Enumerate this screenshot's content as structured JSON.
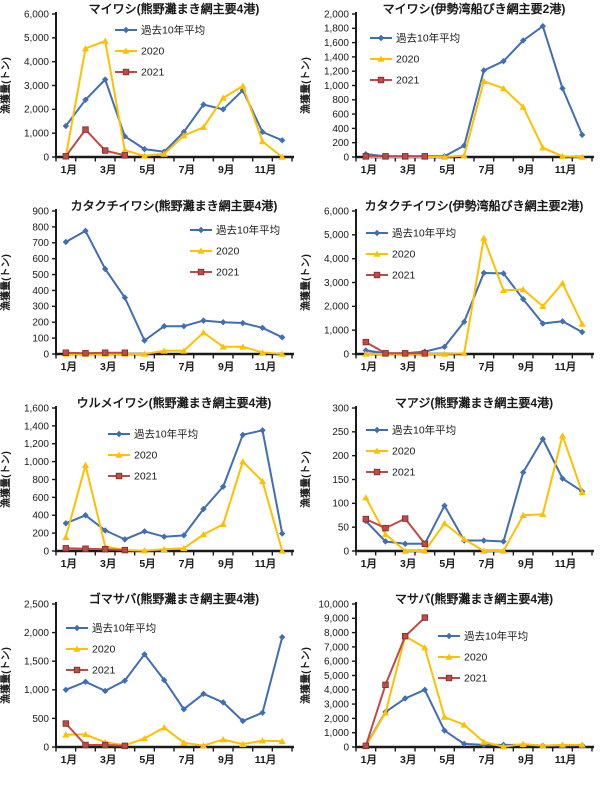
{
  "page": {
    "background": "#ffffff",
    "y_axis_title": "漁獲量(トン)",
    "x_tick_labels": [
      "1月",
      "3月",
      "5月",
      "7月",
      "9月",
      "11月"
    ],
    "months_count": 12,
    "legend_labels": [
      "過去10年平均",
      "2020",
      "2021"
    ],
    "series_colors": {
      "avg": "#3F6EB5",
      "y2020": "#FFC000",
      "y2021": "#BE4B48"
    },
    "marker_shapes": {
      "avg": "diamond",
      "y2020": "triangle",
      "y2021": "square"
    },
    "axis_color": "#1a1a1a"
  },
  "chart_data": [
    {
      "type": "line",
      "title": "マイワシ(熊野灘まき網主要4港)",
      "ylabel": "漁獲量(トン)",
      "ylim": [
        0,
        6000
      ],
      "ytick_step": 1000,
      "legend_position": {
        "x": 115,
        "y": 30
      },
      "series": [
        {
          "name": "過去10年平均",
          "color": "#3F6EB5",
          "marker": "diamond",
          "values": [
            1300,
            2400,
            3250,
            870,
            330,
            220,
            1050,
            2200,
            2000,
            2800,
            1050,
            700
          ]
        },
        {
          "name": "2020",
          "color": "#FFC000",
          "marker": "triangle",
          "values": [
            30,
            4550,
            4870,
            280,
            50,
            130,
            900,
            1250,
            2480,
            2980,
            650,
            0
          ]
        },
        {
          "name": "2021",
          "color": "#BE4B48",
          "marker": "square",
          "values": [
            30,
            1150,
            270,
            70
          ]
        }
      ]
    },
    {
      "type": "line",
      "title": "マイワシ(伊勢湾船びき網主要2港)",
      "ylabel": "漁獲量(トン)",
      "ylim": [
        0,
        2000
      ],
      "ytick_step": 200,
      "legend_position": {
        "x": 70,
        "y": 38
      },
      "series": [
        {
          "name": "過去10年平均",
          "color": "#3F6EB5",
          "marker": "diamond",
          "values": [
            40,
            10,
            10,
            10,
            10,
            160,
            1210,
            1340,
            1630,
            1830,
            960,
            310
          ]
        },
        {
          "name": "2020",
          "color": "#FFC000",
          "marker": "triangle",
          "values": [
            0,
            0,
            0,
            0,
            0,
            20,
            1060,
            960,
            700,
            130,
            10,
            0
          ]
        },
        {
          "name": "2021",
          "color": "#BE4B48",
          "marker": "square",
          "values": [
            10,
            10,
            10,
            10
          ]
        }
      ]
    },
    {
      "type": "line",
      "title": "カタクチイワシ(熊野灘まき網主要4港)",
      "ylabel": "漁獲量(トン)",
      "ylim": [
        0,
        900
      ],
      "ytick_step": 100,
      "legend_position": {
        "x": 190,
        "y": 33
      },
      "series": [
        {
          "name": "過去10年平均",
          "color": "#3F6EB5",
          "marker": "diamond",
          "values": [
            705,
            775,
            535,
            355,
            85,
            175,
            175,
            210,
            200,
            195,
            165,
            105
          ]
        },
        {
          "name": "2020",
          "color": "#FFC000",
          "marker": "triangle",
          "values": [
            0,
            0,
            0,
            0,
            0,
            20,
            20,
            135,
            45,
            45,
            10,
            0
          ]
        },
        {
          "name": "2021",
          "color": "#BE4B48",
          "marker": "square",
          "values": [
            8,
            5,
            8,
            8
          ]
        }
      ]
    },
    {
      "type": "line",
      "title": "カタクチイワシ(伊勢湾船びき網主要2港)",
      "ylabel": "漁獲量(トン)",
      "ylim": [
        0,
        6000
      ],
      "ytick_step": 1000,
      "legend_position": {
        "x": 66,
        "y": 36
      },
      "series": [
        {
          "name": "過去10年平均",
          "color": "#3F6EB5",
          "marker": "diamond",
          "values": [
            150,
            30,
            30,
            100,
            300,
            1350,
            3400,
            3380,
            2300,
            1280,
            1370,
            920
          ]
        },
        {
          "name": "2020",
          "color": "#FFC000",
          "marker": "triangle",
          "values": [
            0,
            0,
            0,
            0,
            0,
            30,
            4870,
            2670,
            2710,
            2000,
            2970,
            1260
          ]
        },
        {
          "name": "2021",
          "color": "#BE4B48",
          "marker": "square",
          "values": [
            500,
            30,
            30,
            30
          ]
        }
      ]
    },
    {
      "type": "line",
      "title": "ウルメイワシ(熊野灘まき網主要4港)",
      "ylabel": "漁獲量(トン)",
      "ylim": [
        0,
        1600
      ],
      "ytick_step": 200,
      "legend_position": {
        "x": 108,
        "y": 40
      },
      "series": [
        {
          "name": "過去10年平均",
          "color": "#3F6EB5",
          "marker": "diamond",
          "values": [
            310,
            400,
            230,
            130,
            220,
            160,
            175,
            470,
            720,
            1300,
            1350,
            195
          ]
        },
        {
          "name": "2020",
          "color": "#FFC000",
          "marker": "triangle",
          "values": [
            155,
            960,
            50,
            10,
            5,
            20,
            30,
            185,
            300,
            1000,
            780,
            0
          ]
        },
        {
          "name": "2021",
          "color": "#BE4B48",
          "marker": "square",
          "values": [
            30,
            25,
            20,
            10
          ]
        }
      ]
    },
    {
      "type": "line",
      "title": "マアジ(熊野灘まき網主要4港)",
      "ylabel": "漁獲量(トン)",
      "ylim": [
        0,
        300
      ],
      "ytick_step": 50,
      "legend_position": {
        "x": 66,
        "y": 36
      },
      "series": [
        {
          "name": "過去10年平均",
          "color": "#3F6EB5",
          "marker": "diamond",
          "values": [
            63,
            20,
            15,
            15,
            95,
            22,
            22,
            20,
            165,
            235,
            152,
            125
          ]
        },
        {
          "name": "2020",
          "color": "#FFC000",
          "marker": "triangle",
          "values": [
            112,
            35,
            0,
            0,
            58,
            25,
            0,
            0,
            75,
            77,
            242,
            123
          ]
        },
        {
          "name": "2021",
          "color": "#BE4B48",
          "marker": "square",
          "values": [
            67,
            48,
            68,
            15
          ]
        }
      ]
    },
    {
      "type": "line",
      "title": "ゴマサバ(熊野灘まき網主要4港)",
      "ylabel": "漁獲量(トン)",
      "ylim": [
        0,
        2500
      ],
      "ytick_step": 500,
      "legend_position": {
        "x": 66,
        "y": 38
      },
      "series": [
        {
          "name": "過去10年平均",
          "color": "#3F6EB5",
          "marker": "diamond",
          "values": [
            1000,
            1140,
            980,
            1160,
            1620,
            1170,
            660,
            930,
            780,
            455,
            600,
            1920
          ]
        },
        {
          "name": "2020",
          "color": "#FFC000",
          "marker": "triangle",
          "values": [
            215,
            220,
            80,
            30,
            150,
            340,
            75,
            25,
            130,
            50,
            110,
            100
          ]
        },
        {
          "name": "2021",
          "color": "#BE4B48",
          "marker": "square",
          "values": [
            410,
            35,
            35,
            20
          ]
        }
      ]
    },
    {
      "type": "line",
      "title": "マサバ(熊野灘まき網主要4港)",
      "ylabel": "漁獲量(トン)",
      "ylim": [
        0,
        10000
      ],
      "ytick_step": 1000,
      "legend_position": {
        "x": 138,
        "y": 46
      },
      "series": [
        {
          "name": "過去10年平均",
          "color": "#3F6EB5",
          "marker": "diamond",
          "values": [
            100,
            2450,
            3400,
            4000,
            1150,
            220,
            150,
            150,
            150,
            100,
            100,
            120
          ]
        },
        {
          "name": "2020",
          "color": "#FFC000",
          "marker": "triangle",
          "values": [
            50,
            2400,
            7750,
            6950,
            2100,
            1550,
            350,
            30,
            200,
            100,
            150,
            150
          ]
        },
        {
          "name": "2021",
          "color": "#BE4B48",
          "marker": "square",
          "values": [
            80,
            4350,
            7750,
            9050
          ]
        }
      ]
    }
  ]
}
